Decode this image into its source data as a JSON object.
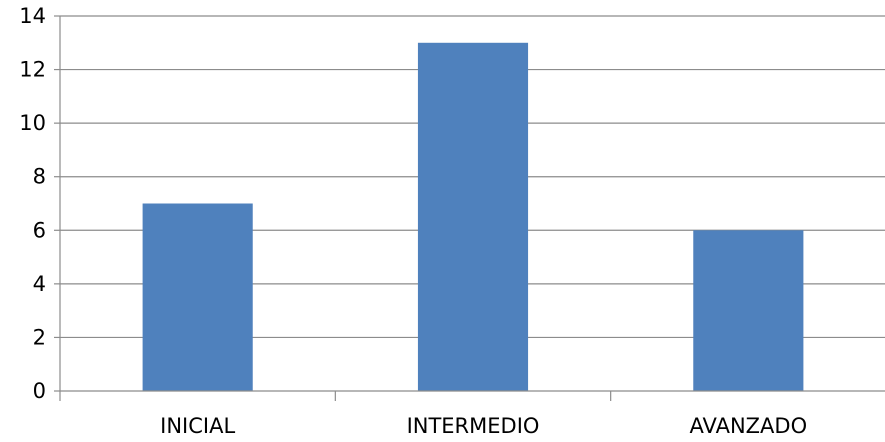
{
  "chart_data": {
    "type": "bar",
    "categories": [
      "INICIAL",
      "INTERMEDIO",
      "AVANZADO"
    ],
    "values": [
      7,
      13,
      6
    ],
    "ylim": [
      0,
      14
    ],
    "y_ticks": [
      0,
      2,
      4,
      6,
      8,
      10,
      12,
      14
    ],
    "grid": true,
    "legend": "none",
    "colors": {
      "bar": "#4F81BD",
      "grid": "#8C8C8C",
      "axis": "#8C8C8C"
    }
  }
}
